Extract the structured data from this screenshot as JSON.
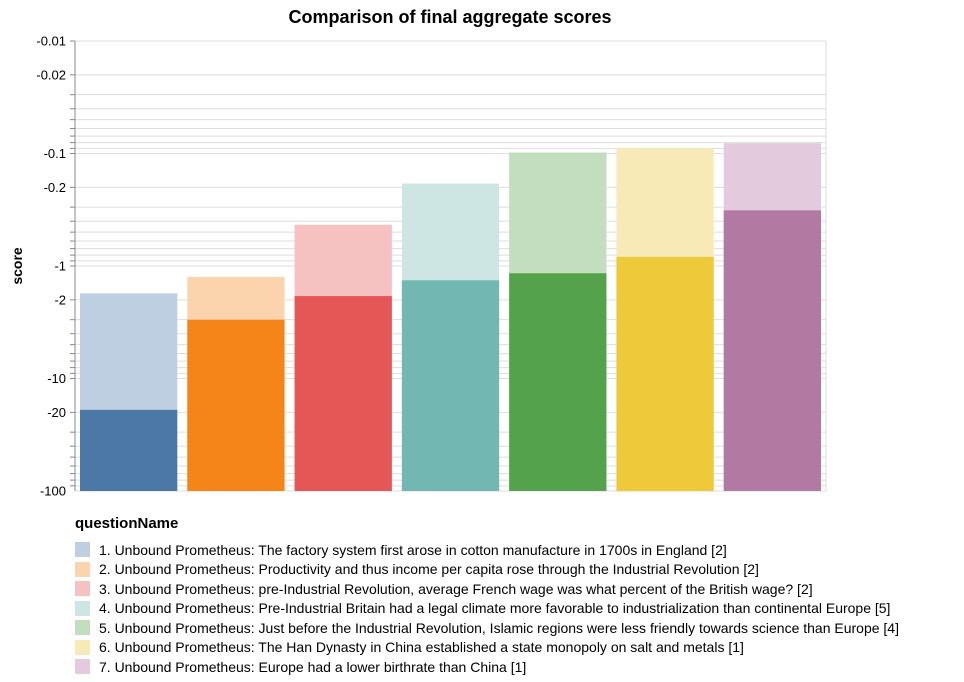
{
  "chart_data": {
    "type": "bar",
    "title": "Comparison of final aggregate scores",
    "ylabel": "score",
    "xlabel": "",
    "yscale": "log (negative values)",
    "ylim": [
      -100,
      -0.01
    ],
    "y_ticks": [
      "-0.01",
      "-0.02",
      "-0.1",
      "-0.2",
      "-1",
      "-2",
      "-10",
      "-20",
      "-100"
    ],
    "grid": true,
    "legend_title": "questionName",
    "legend_position": "bottom",
    "categories": [
      "1. Unbound Prometheus: The factory system first arose in cotton manufacture in 1700s in England [2]",
      "2. Unbound Prometheus: Productivity and thus income per capita rose through the Industrial Revolution [2]",
      "3. Unbound Prometheus: pre-Industrial Revolution, average French wage was what percent of the British wage? [2]",
      "4. Unbound Prometheus: Pre-Industrial Britain had a legal climate more favorable to industrialization than continental Europe [5]",
      "5. Unbound Prometheus: Just before the Industrial Revolution, Islamic regions were less friendly towards science than Europe [4]",
      "6. Unbound Prometheus: The Han Dynasty in China established a state monopoly on salt and metals [1]",
      "7. Unbound Prometheus: Europe had a lower birthrate than China [1]"
    ],
    "series": [
      {
        "values": [
          -1.75,
          -1.25,
          -0.43,
          -0.185,
          -0.098,
          -0.09,
          -0.081
        ]
      },
      {
        "values": [
          -19.0,
          -3.0,
          -1.85,
          -1.34,
          -1.16,
          -0.83,
          -0.32
        ]
      }
    ],
    "colors": [
      "#4c78a8",
      "#f58518",
      "#e45756",
      "#72b7b2",
      "#54a24b",
      "#eeca3b",
      "#b279a2"
    ],
    "light_colors": [
      "#bfcfe2",
      "#fbd4ad",
      "#f5c2c1",
      "#cde5e3",
      "#c3ddbf",
      "#f8eab6",
      "#e3cbdd"
    ]
  }
}
